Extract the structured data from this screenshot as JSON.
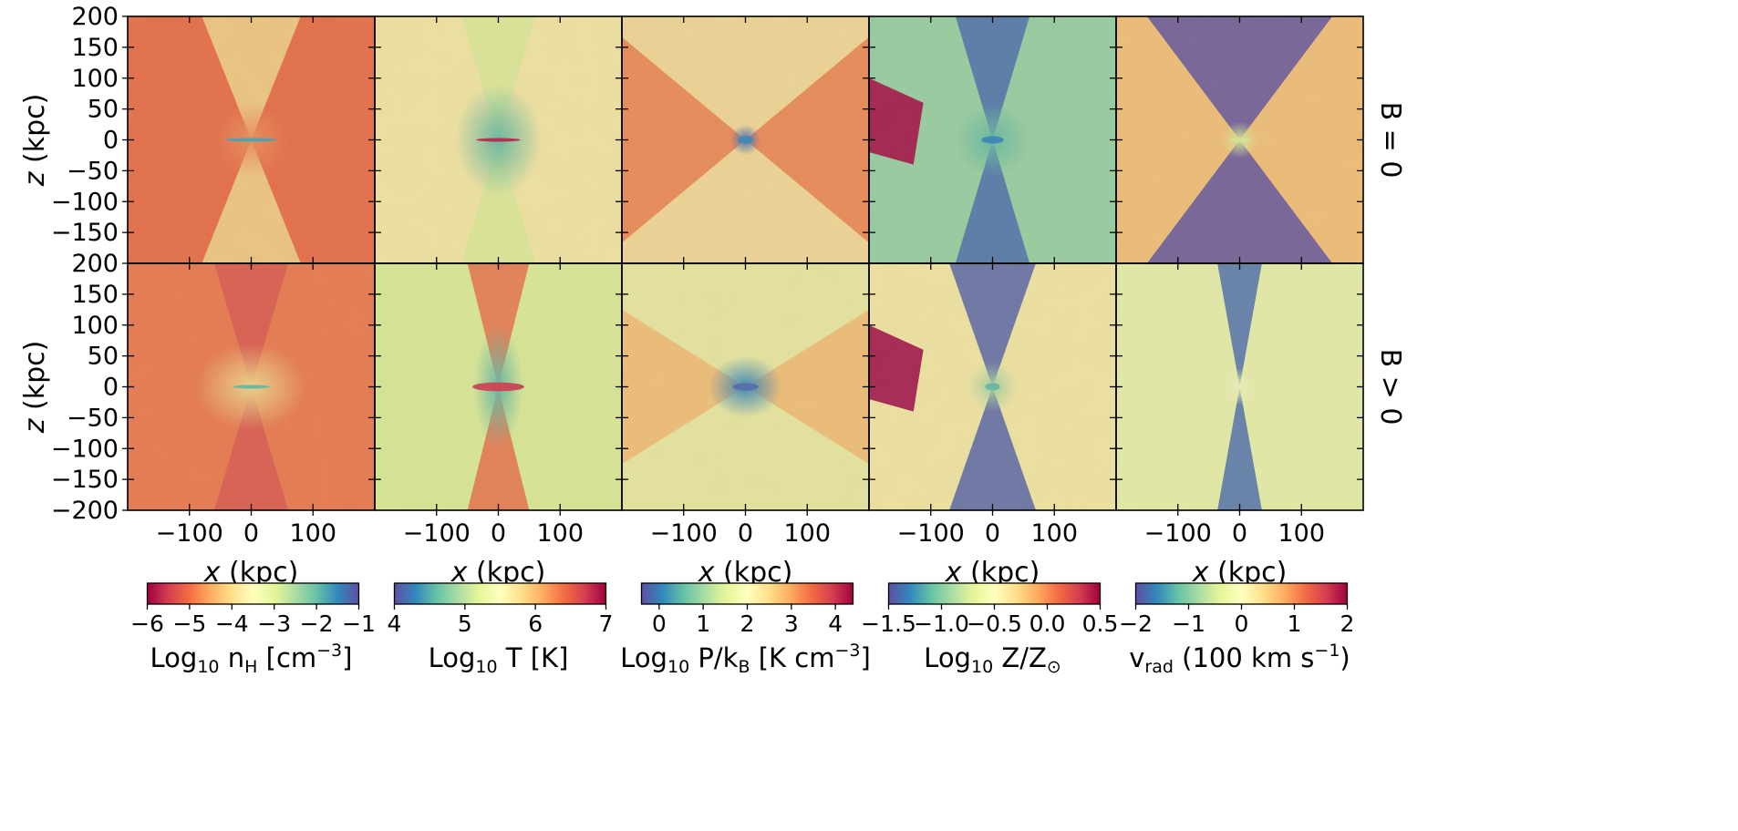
{
  "figure": {
    "rows": [
      {
        "label": "B = 0"
      },
      {
        "label": "B > 0"
      }
    ],
    "xlabel": "x (kpc)",
    "ylabel": "z (kpc)",
    "x_ticks": [
      -100,
      0,
      100
    ],
    "x_tick_labels": [
      "−100",
      "0",
      "100"
    ],
    "y_ticks_top": [
      200,
      150,
      100,
      50,
      0,
      -50,
      -100,
      -150
    ],
    "y_ticks_bottom": [
      200,
      150,
      100,
      50,
      0,
      -50,
      -100,
      -150,
      -200
    ],
    "y_tick_labels_top": [
      "200",
      "150",
      "100",
      "50",
      "0",
      "−50",
      "−100",
      "−150"
    ],
    "y_tick_labels_bottom": [
      "200",
      "150",
      "100",
      "50",
      "0",
      "−50",
      "−100",
      "−150",
      "−200"
    ]
  },
  "chart_data": {
    "type": "heatmap",
    "xlim": [
      -200,
      200
    ],
    "ylim": [
      -200,
      200
    ],
    "panels": [
      {
        "quantity": "nH",
        "colorbar": {
          "title_main": "Log",
          "title_sub": "10",
          "title_rest": " n",
          "title_rest_sub": "H",
          "title_tail": " [cm",
          "title_sup": "−3",
          "title_end": "]",
          "range": [
            -6,
            -1
          ],
          "ticks": [
            -6,
            -5,
            -4,
            -3,
            -2,
            -1
          ],
          "tick_labels": [
            "−6",
            "−5",
            "−4",
            "−3",
            "−2",
            "−1"
          ],
          "colormap": "Spectral",
          "reversed": false
        },
        "maps": [
          {
            "row": "B = 0",
            "background": 0.2,
            "center": 0.25,
            "center_w": 60,
            "center_h": 60,
            "disk": 0.85,
            "disk_w": 70,
            "disk_h": 4,
            "cone": 0.4,
            "cone_w": 0.4,
            "cone_up": true,
            "cone_down": true,
            "lobe_up": null,
            "lobe_down": null
          },
          {
            "row": "B > 0",
            "background": 0.22,
            "center": 0.4,
            "center_w": 90,
            "center_h": 70,
            "disk": 0.8,
            "disk_w": 50,
            "disk_h": 5,
            "cone": 0.15,
            "cone_w": 0.3,
            "cone_up": true,
            "cone_down": true,
            "lobe_up": null,
            "lobe_down": null
          }
        ]
      },
      {
        "quantity": "T",
        "colorbar": {
          "title_main": "Log",
          "title_sub": "10",
          "title_rest": " T [K]",
          "title_rest_sub": "",
          "title_tail": "",
          "title_sup": "",
          "title_end": "",
          "range": [
            4,
            7
          ],
          "ticks": [
            4,
            5,
            6,
            7
          ],
          "tick_labels": [
            "4",
            "5",
            "6",
            "7"
          ],
          "colormap": "Spectral",
          "reversed": true
        },
        "maps": [
          {
            "row": "B = 0",
            "background": 0.45,
            "center": 0.8,
            "center_w": 70,
            "center_h": 90,
            "disk": 0.05,
            "disk_w": 60,
            "disk_h": 5,
            "cone": 0.6,
            "cone_w": 0.3,
            "cone_up": true,
            "cone_down": true,
            "lobe_up": null,
            "lobe_down": null
          },
          {
            "row": "B > 0",
            "background": 0.6,
            "center": 0.8,
            "center_w": 40,
            "center_h": 100,
            "disk": 0.1,
            "disk_w": 70,
            "disk_h": 12,
            "cone": 0.2,
            "cone_w": 0.25,
            "cone_up": true,
            "cone_down": true,
            "lobe_up": null,
            "lobe_down": null
          }
        ]
      },
      {
        "quantity": "P",
        "colorbar": {
          "title_main": "Log",
          "title_sub": "10",
          "title_rest": " P/k",
          "title_rest_sub": "B",
          "title_tail": " [K cm",
          "title_sup": "−3",
          "title_end": "]",
          "range": [
            -0.4,
            4.4
          ],
          "ticks": [
            0,
            1,
            2,
            3,
            4
          ],
          "tick_labels": [
            "0",
            "1",
            "2",
            "3",
            "4"
          ],
          "colormap": "Spectral",
          "reversed": true
        },
        "maps": [
          {
            "row": "B = 0",
            "background": 0.25,
            "center": 0.95,
            "center_w": 25,
            "center_h": 25,
            "disk": 0.9,
            "disk_w": 20,
            "disk_h": 10,
            "cone": 0.45,
            "cone_w": 1.2,
            "cone_up": true,
            "cone_down": true,
            "lobe_up": null,
            "lobe_down": null
          },
          {
            "row": "B > 0",
            "background": 0.35,
            "center": 0.9,
            "center_w": 60,
            "center_h": 50,
            "disk": 0.95,
            "disk_w": 35,
            "disk_h": 10,
            "cone": 0.55,
            "cone_w": 1.6,
            "cone_up": true,
            "cone_down": true,
            "lobe_up": null,
            "lobe_down": null
          }
        ]
      },
      {
        "quantity": "Z",
        "colorbar": {
          "title_main": "Log",
          "title_sub": "10",
          "title_rest": " Z/Z",
          "title_rest_sub": "⊙",
          "title_tail": "",
          "title_sup": "",
          "title_end": "",
          "range": [
            -1.5,
            0.5
          ],
          "ticks": [
            -1.5,
            -1.0,
            -0.5,
            0.0,
            0.5
          ],
          "tick_labels": [
            "−1.5",
            "−1.0",
            "−0.5",
            "0.0",
            "0.5"
          ],
          "colormap": "Spectral",
          "reversed": true
        },
        "maps": [
          {
            "row": "B = 0",
            "background": 0.72,
            "center": 0.8,
            "center_w": 60,
            "center_h": 60,
            "disk": 0.9,
            "disk_w": 30,
            "disk_h": 10,
            "cone": 0.95,
            "cone_w": 0.3,
            "cone_up": true,
            "cone_down": true,
            "lobe_up": null,
            "lobe_down": null,
            "side_patch": 0.02
          },
          {
            "row": "B > 0",
            "background": 0.45,
            "center": 0.7,
            "center_w": 40,
            "center_h": 40,
            "disk": 0.8,
            "disk_w": 20,
            "disk_h": 10,
            "cone": 0.97,
            "cone_w": 0.35,
            "cone_up": true,
            "cone_down": true,
            "lobe_up": null,
            "lobe_down": null,
            "side_patch": 0.02
          }
        ]
      },
      {
        "quantity": "vrad",
        "colorbar": {
          "title_main": "v",
          "title_sub": "rad",
          "title_rest": " (100 km s",
          "title_rest_sub": "",
          "title_tail": "",
          "title_sup": "−1",
          "title_end": ")",
          "range": [
            -2,
            2
          ],
          "ticks": [
            -2,
            -1,
            0,
            1,
            2
          ],
          "tick_labels": [
            "−2",
            "−1",
            "0",
            "1",
            "2"
          ],
          "colormap": "Spectral",
          "reversed": true
        },
        "maps": [
          {
            "row": "B = 0",
            "background": 0.35,
            "center": 0.6,
            "center_w": 30,
            "center_h": 30,
            "disk": 0.6,
            "disk_w": 30,
            "disk_h": 5,
            "cone": 1.0,
            "cone_w": 0.75,
            "cone_up": true,
            "cone_down": true,
            "lobe_up": null,
            "lobe_down": null
          },
          {
            "row": "B > 0",
            "background": 0.55,
            "center": 0.5,
            "center_w": 30,
            "center_h": 30,
            "disk": 0.5,
            "disk_w": 20,
            "disk_h": 5,
            "cone": 0.95,
            "cone_w": 0.18,
            "cone_up": true,
            "cone_down": true,
            "lobe_up": null,
            "lobe_down": null
          }
        ]
      }
    ]
  },
  "colors": {
    "spectral": [
      "#9e0142",
      "#d53e4f",
      "#f46d43",
      "#fdae61",
      "#fee08b",
      "#ffffbf",
      "#e6f598",
      "#abdda4",
      "#66c2a5",
      "#3288bd",
      "#5e4fa2"
    ]
  }
}
